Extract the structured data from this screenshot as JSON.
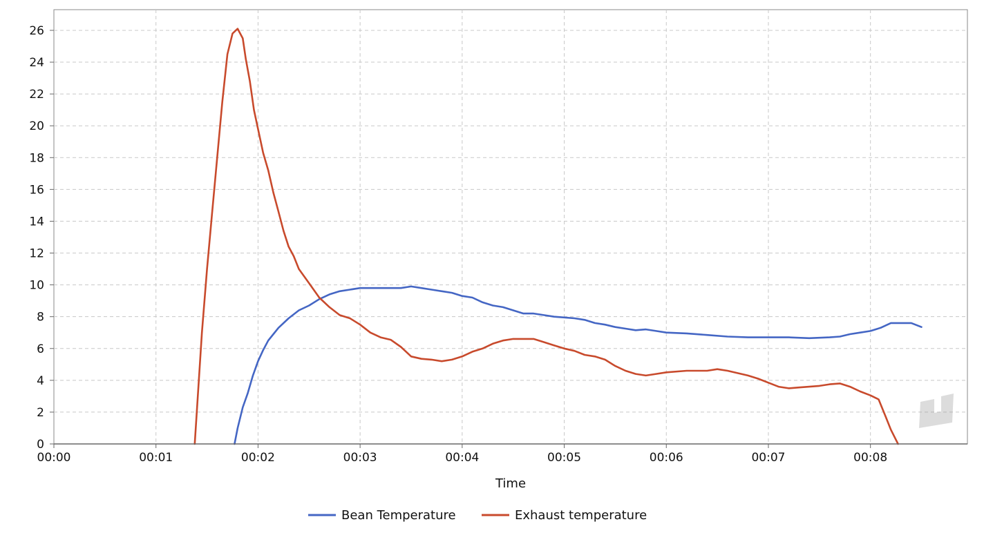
{
  "chart_data": {
    "type": "line",
    "title": "",
    "xlabel": "Time",
    "ylabel": "",
    "x_ticks": [
      "00:00",
      "00:01",
      "00:02",
      "00:03",
      "00:04",
      "00:05",
      "00:06",
      "00:07",
      "00:08"
    ],
    "y_ticks": [
      0,
      2,
      4,
      6,
      8,
      10,
      12,
      14,
      16,
      18,
      20,
      22,
      24,
      26
    ],
    "xlim_minutes": [
      0,
      8.95
    ],
    "ylim": [
      0,
      27.3
    ],
    "grid": true,
    "legend_position": "bottom",
    "watermark_icon": "logo-watermark-icon",
    "series": [
      {
        "name": "Bean Temperature",
        "color": "#4466C4",
        "x": [
          1.77,
          1.8,
          1.85,
          1.9,
          1.95,
          2.0,
          2.05,
          2.1,
          2.15,
          2.2,
          2.3,
          2.4,
          2.5,
          2.6,
          2.7,
          2.8,
          2.9,
          3.0,
          3.1,
          3.2,
          3.3,
          3.4,
          3.5,
          3.6,
          3.7,
          3.8,
          3.9,
          4.0,
          4.1,
          4.2,
          4.3,
          4.4,
          4.5,
          4.6,
          4.7,
          4.8,
          4.9,
          5.0,
          5.1,
          5.2,
          5.3,
          5.4,
          5.5,
          5.6,
          5.7,
          5.8,
          5.9,
          6.0,
          6.2,
          6.4,
          6.6,
          6.8,
          7.0,
          7.2,
          7.4,
          7.6,
          7.7,
          7.8,
          7.9,
          8.0,
          8.1,
          8.2,
          8.3,
          8.4,
          8.5
        ],
        "y": [
          0.0,
          1.0,
          2.3,
          3.2,
          4.3,
          5.2,
          5.9,
          6.5,
          6.9,
          7.3,
          7.9,
          8.4,
          8.7,
          9.1,
          9.4,
          9.6,
          9.7,
          9.8,
          9.8,
          9.8,
          9.8,
          9.8,
          9.9,
          9.8,
          9.7,
          9.6,
          9.5,
          9.3,
          9.2,
          8.9,
          8.7,
          8.6,
          8.4,
          8.2,
          8.2,
          8.1,
          8.0,
          7.95,
          7.9,
          7.8,
          7.6,
          7.5,
          7.35,
          7.25,
          7.15,
          7.2,
          7.1,
          7.0,
          6.95,
          6.85,
          6.75,
          6.7,
          6.7,
          6.7,
          6.65,
          6.7,
          6.75,
          6.9,
          7.0,
          7.1,
          7.3,
          7.6,
          7.6,
          7.6,
          7.35
        ]
      },
      {
        "name": "Exhaust temperature",
        "color": "#C84A2C",
        "x": [
          1.38,
          1.45,
          1.5,
          1.55,
          1.6,
          1.65,
          1.7,
          1.75,
          1.8,
          1.85,
          1.88,
          1.92,
          1.96,
          2.0,
          2.05,
          2.1,
          2.15,
          2.2,
          2.25,
          2.3,
          2.35,
          2.4,
          2.5,
          2.6,
          2.7,
          2.8,
          2.9,
          3.0,
          3.1,
          3.2,
          3.3,
          3.4,
          3.5,
          3.6,
          3.7,
          3.8,
          3.9,
          4.0,
          4.1,
          4.2,
          4.3,
          4.4,
          4.5,
          4.6,
          4.7,
          4.8,
          4.9,
          5.0,
          5.1,
          5.2,
          5.3,
          5.4,
          5.5,
          5.6,
          5.7,
          5.8,
          5.9,
          6.0,
          6.2,
          6.4,
          6.5,
          6.6,
          6.8,
          6.9,
          7.0,
          7.1,
          7.2,
          7.3,
          7.4,
          7.5,
          7.6,
          7.7,
          7.8,
          7.9,
          8.0,
          8.08,
          8.15,
          8.2,
          8.27
        ],
        "y": [
          0.0,
          7.0,
          11.0,
          14.5,
          18.0,
          21.5,
          24.5,
          25.8,
          26.1,
          25.5,
          24.2,
          22.8,
          21.0,
          19.8,
          18.3,
          17.2,
          15.8,
          14.6,
          13.4,
          12.4,
          11.8,
          11.0,
          10.1,
          9.2,
          8.6,
          8.1,
          7.9,
          7.5,
          7.0,
          6.7,
          6.55,
          6.1,
          5.5,
          5.35,
          5.3,
          5.2,
          5.3,
          5.5,
          5.8,
          6.0,
          6.3,
          6.5,
          6.6,
          6.6,
          6.6,
          6.4,
          6.2,
          6.0,
          5.85,
          5.6,
          5.5,
          5.3,
          4.9,
          4.6,
          4.4,
          4.3,
          4.4,
          4.5,
          4.6,
          4.6,
          4.7,
          4.6,
          4.3,
          4.1,
          3.85,
          3.6,
          3.5,
          3.55,
          3.6,
          3.65,
          3.75,
          3.8,
          3.6,
          3.3,
          3.05,
          2.8,
          1.7,
          0.9,
          0.0
        ]
      }
    ]
  }
}
